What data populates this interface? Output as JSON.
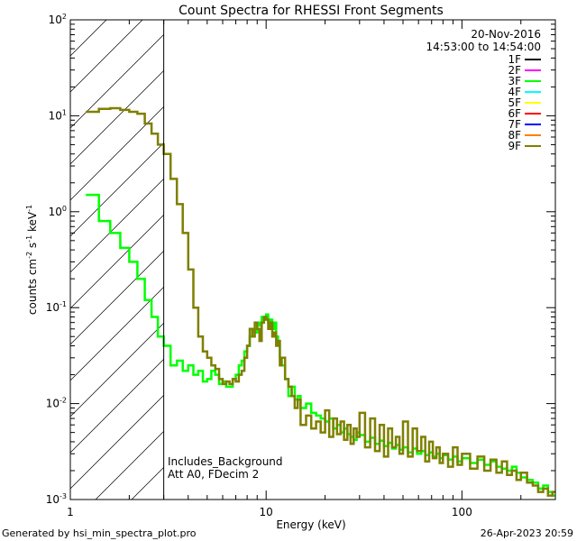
{
  "chart_data": {
    "type": "line",
    "title": "Count Spectra for RHESSI Front Segments",
    "xlabel": "Energy (keV)",
    "ylabel": "counts cm",
    "ylabel_sup1": "-2",
    "ylabel_mid": " s",
    "ylabel_sup2": "-1",
    "ylabel_end": " keV",
    "ylabel_sup3": "-1",
    "x_scale": "log",
    "y_scale": "log",
    "xlim": [
      1.0,
      300.0
    ],
    "ylim": [
      0.001,
      100.0
    ],
    "x_ticks": [
      {
        "value": 1,
        "label": "1"
      },
      {
        "value": 10,
        "label": "10"
      },
      {
        "value": 100,
        "label": "100"
      }
    ],
    "y_ticks": [
      {
        "value": 0.001,
        "base": "10",
        "exp": "-3"
      },
      {
        "value": 0.01,
        "base": "10",
        "exp": "-2"
      },
      {
        "value": 0.1,
        "base": "10",
        "exp": "-1"
      },
      {
        "value": 1,
        "base": "10",
        "exp": "0"
      },
      {
        "value": 10,
        "base": "10",
        "exp": "1"
      },
      {
        "value": 100,
        "base": "10",
        "exp": "2"
      }
    ],
    "hatched_region_max_energy": 3.0,
    "date": "20-Nov-2016",
    "time_range": "14:53:00 to 14:54:00",
    "annotation_line1": "Includes_Background",
    "annotation_line2": "Att A0, FDecim 2",
    "footer_left": "Generated by hsi_min_spectra_plot.pro",
    "footer_right": "26-Apr-2023 20:59",
    "legend": [
      {
        "name": "1F",
        "color": "#000000"
      },
      {
        "name": "2F",
        "color": "#ff00ff"
      },
      {
        "name": "3F",
        "color": "#00ff00"
      },
      {
        "name": "4F",
        "color": "#00ffff"
      },
      {
        "name": "5F",
        "color": "#ffff00"
      },
      {
        "name": "6F",
        "color": "#ff0000"
      },
      {
        "name": "7F",
        "color": "#0000ff"
      },
      {
        "name": "8F",
        "color": "#ff7f00"
      },
      {
        "name": "9F",
        "color": "#7f7f00"
      }
    ],
    "series": [
      {
        "name": "3F",
        "color": "#00ff00",
        "x": [
          1.2,
          1.3,
          1.4,
          1.5,
          1.6,
          1.7,
          1.8,
          1.9,
          2.0,
          2.1,
          2.2,
          2.3,
          2.4,
          2.5,
          2.6,
          2.7,
          2.8,
          2.9,
          3.0,
          3.25,
          3.5,
          3.75,
          4.0,
          4.25,
          4.5,
          4.75,
          5.0,
          5.25,
          5.5,
          5.75,
          6.0,
          6.25,
          6.5,
          6.75,
          7.0,
          7.25,
          7.5,
          7.75,
          8.0,
          8.25,
          8.5,
          8.75,
          9.0,
          9.25,
          9.5,
          9.75,
          10.0,
          10.25,
          10.5,
          10.75,
          11.0,
          11.25,
          11.5,
          11.75,
          12.0,
          12.5,
          13.0,
          13.5,
          14.0,
          14.5,
          15.0,
          16.0,
          17.0,
          18.0,
          19.0,
          20.0,
          21.0,
          22.0,
          23.0,
          24.0,
          25.0,
          26.0,
          27.0,
          28.0,
          29.0,
          30.0,
          32.0,
          34.0,
          36.0,
          38.0,
          40.0,
          42.0,
          44.0,
          46.0,
          48.0,
          50.0,
          53.0,
          56.0,
          59.0,
          62.0,
          65.0,
          68.0,
          71.0,
          74.0,
          77.0,
          80.0,
          85.0,
          90.0,
          95.0,
          100.0,
          110.0,
          120.0,
          130.0,
          140.0,
          150.0,
          160.0,
          170.0,
          180.0,
          190.0,
          200.0,
          215.0,
          230.0,
          245.0,
          260.0,
          275.0,
          290.0
        ],
        "values": [
          1.5,
          1.5,
          0.8,
          0.8,
          0.6,
          0.6,
          0.42,
          0.42,
          0.3,
          0.3,
          0.2,
          0.2,
          0.12,
          0.12,
          0.08,
          0.08,
          0.05,
          0.05,
          0.04,
          0.025,
          0.028,
          0.022,
          0.025,
          0.02,
          0.022,
          0.017,
          0.018,
          0.022,
          0.02,
          0.016,
          0.017,
          0.015,
          0.015,
          0.018,
          0.02,
          0.025,
          0.028,
          0.035,
          0.04,
          0.05,
          0.06,
          0.055,
          0.07,
          0.065,
          0.08,
          0.075,
          0.085,
          0.07,
          0.075,
          0.06,
          0.07,
          0.05,
          0.045,
          0.03,
          0.025,
          0.018,
          0.012,
          0.015,
          0.011,
          0.012,
          0.009,
          0.01,
          0.008,
          0.0075,
          0.007,
          0.0065,
          0.007,
          0.0055,
          0.006,
          0.005,
          0.0055,
          0.0048,
          0.0045,
          0.0042,
          0.005,
          0.0047,
          0.004,
          0.0044,
          0.0038,
          0.0041,
          0.0036,
          0.0039,
          0.0034,
          0.0037,
          0.0033,
          0.0035,
          0.0031,
          0.0034,
          0.003,
          0.0032,
          0.0029,
          0.0031,
          0.0028,
          0.003,
          0.0027,
          0.0029,
          0.0026,
          0.0028,
          0.0025,
          0.0027,
          0.0024,
          0.0026,
          0.0023,
          0.0025,
          0.0022,
          0.0021,
          0.002,
          0.0022,
          0.0019,
          0.0017,
          0.0016,
          0.0015,
          0.0013,
          0.0014,
          0.0012,
          0.0011
        ]
      },
      {
        "name": "9F",
        "color": "#7f7f00",
        "x": [
          1.2,
          1.3,
          1.4,
          1.5,
          1.6,
          1.7,
          1.8,
          1.9,
          2.0,
          2.1,
          2.2,
          2.3,
          2.4,
          2.5,
          2.6,
          2.7,
          2.8,
          2.9,
          3.0,
          3.25,
          3.5,
          3.75,
          4.0,
          4.25,
          4.5,
          4.75,
          5.0,
          5.25,
          5.5,
          5.75,
          6.0,
          6.25,
          6.5,
          6.75,
          7.0,
          7.25,
          7.5,
          7.75,
          8.0,
          8.25,
          8.5,
          8.75,
          9.0,
          9.25,
          9.5,
          9.75,
          10.0,
          10.25,
          10.5,
          10.75,
          11.0,
          11.25,
          11.5,
          11.75,
          12.0,
          12.5,
          13.0,
          13.5,
          14.0,
          14.5,
          15.0,
          16.0,
          17.0,
          18.0,
          19.0,
          20.0,
          21.0,
          22.0,
          23.0,
          24.0,
          25.0,
          26.0,
          27.0,
          28.0,
          29.0,
          30.0,
          32.0,
          34.0,
          36.0,
          38.0,
          40.0,
          42.0,
          44.0,
          46.0,
          48.0,
          50.0,
          53.0,
          56.0,
          59.0,
          62.0,
          65.0,
          68.0,
          71.0,
          74.0,
          77.0,
          80.0,
          85.0,
          90.0,
          95.0,
          100.0,
          110.0,
          120.0,
          130.0,
          140.0,
          150.0,
          160.0,
          170.0,
          180.0,
          190.0,
          200.0,
          215.0,
          230.0,
          245.0,
          260.0,
          275.0,
          290.0
        ],
        "values": [
          11,
          11,
          11.8,
          11.8,
          12,
          12,
          11.5,
          11.5,
          11,
          11,
          10.5,
          10.5,
          8.3,
          8.3,
          6.5,
          6.5,
          5.0,
          5.0,
          4.0,
          2.2,
          1.2,
          0.6,
          0.25,
          0.1,
          0.05,
          0.035,
          0.03,
          0.025,
          0.023,
          0.018,
          0.016,
          0.017,
          0.016,
          0.018,
          0.017,
          0.02,
          0.022,
          0.03,
          0.04,
          0.06,
          0.05,
          0.07,
          0.06,
          0.045,
          0.07,
          0.08,
          0.075,
          0.06,
          0.07,
          0.05,
          0.055,
          0.04,
          0.045,
          0.025,
          0.03,
          0.018,
          0.015,
          0.012,
          0.009,
          0.011,
          0.006,
          0.0075,
          0.0055,
          0.0065,
          0.005,
          0.0085,
          0.0045,
          0.007,
          0.0048,
          0.0065,
          0.0042,
          0.006,
          0.0038,
          0.0055,
          0.0045,
          0.008,
          0.0035,
          0.007,
          0.0032,
          0.006,
          0.0028,
          0.0055,
          0.0035,
          0.0045,
          0.003,
          0.0065,
          0.0028,
          0.0055,
          0.0032,
          0.0045,
          0.0025,
          0.004,
          0.0027,
          0.0035,
          0.0024,
          0.003,
          0.0022,
          0.0035,
          0.0023,
          0.003,
          0.0021,
          0.0028,
          0.002,
          0.0026,
          0.0019,
          0.0025,
          0.0018,
          0.002,
          0.0016,
          0.0019,
          0.0015,
          0.0014,
          0.0012,
          0.0013,
          0.0011,
          0.0012
        ]
      }
    ]
  }
}
